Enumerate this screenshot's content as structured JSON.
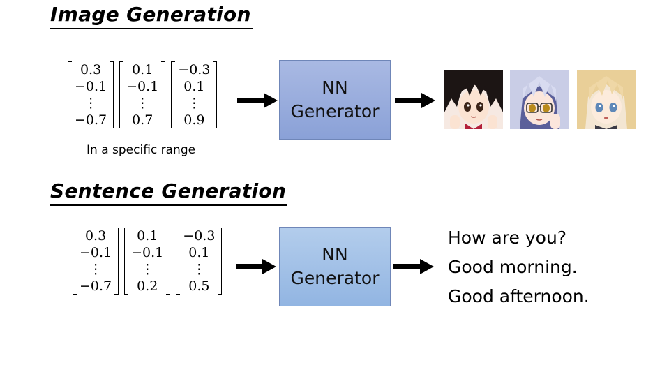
{
  "image_section": {
    "title": "Image Generation",
    "vectors": [
      [
        "0.3",
        "−0.1",
        "⋮",
        "−0.7"
      ],
      [
        "0.1",
        "−0.1",
        "⋮",
        "0.7"
      ],
      [
        "−0.3",
        "0.1",
        "⋮",
        "0.9"
      ]
    ],
    "range_label": "In a specific range",
    "generator_line1": "NN",
    "generator_line2": "Generator",
    "outputs": [
      {
        "icon": "anime-face-black-hair",
        "hair_color": "#1c1514"
      },
      {
        "icon": "anime-face-silver-hair-glasses",
        "hair_color": "#c9cde6"
      },
      {
        "icon": "anime-face-blonde-hair",
        "hair_color": "#e9cf98"
      }
    ]
  },
  "sentence_section": {
    "title": "Sentence Generation",
    "vectors": [
      [
        "0.3",
        "−0.1",
        "⋮",
        "−0.7"
      ],
      [
        "0.1",
        "−0.1",
        "⋮",
        "0.2"
      ],
      [
        "−0.3",
        "0.1",
        "⋮",
        "0.5"
      ]
    ],
    "generator_line1": "NN",
    "generator_line2": "Generator",
    "outputs": [
      "How are you?",
      "Good morning.",
      "Good afternoon."
    ]
  },
  "colors": {
    "image_generator_fill": "#8fa5da",
    "sentence_generator_fill": "#9dbde6",
    "arrow": "#000000"
  }
}
